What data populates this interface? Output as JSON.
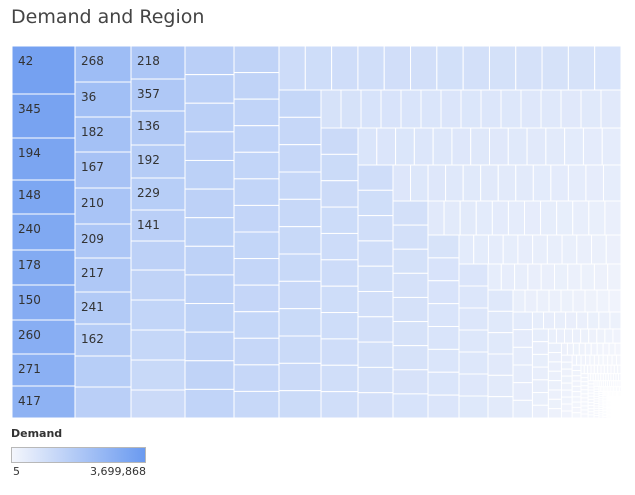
{
  "title": "Demand and Region",
  "legend": {
    "title": "Demand",
    "min_label": "5",
    "max_label": "3,699,868",
    "color_low": "#f4f6fc",
    "color_high": "#6a9af0"
  },
  "chart_data": {
    "type": "treemap",
    "color_measure": "Demand",
    "color_range": [
      5,
      3699868
    ],
    "labeled_cells": [
      {
        "column": 1,
        "labels": [
          "42",
          "345",
          "194",
          "148",
          "240",
          "178",
          "150",
          "260",
          "271",
          "417"
        ]
      },
      {
        "column": 2,
        "labels": [
          "268",
          "36",
          "182",
          "167",
          "210",
          "209",
          "217",
          "241",
          "162"
        ]
      },
      {
        "column": 3,
        "labels": [
          "218",
          "357",
          "136",
          "192",
          "229",
          "141"
        ]
      }
    ]
  }
}
